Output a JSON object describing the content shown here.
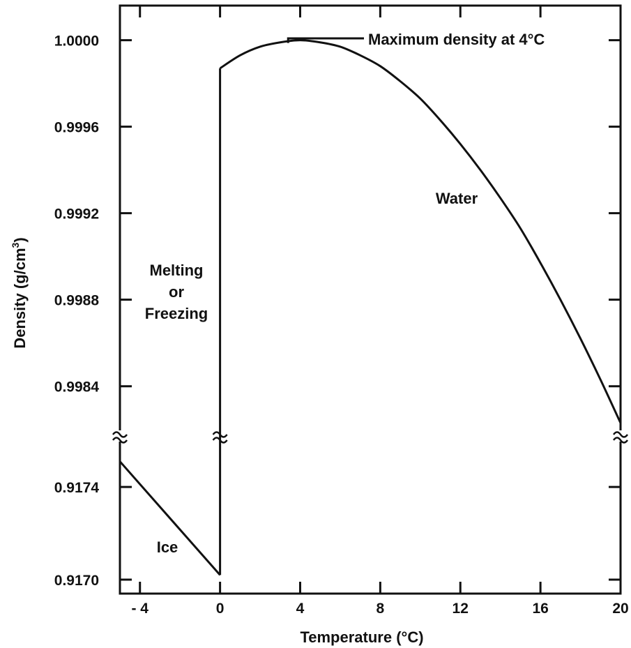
{
  "chart_data": {
    "type": "line",
    "title": "",
    "xlabel": "Temperature (°C)",
    "ylabel_main": "Density (g/cm",
    "ylabel_sup": "3",
    "ylabel_close": ")",
    "xlim": [
      -5,
      20
    ],
    "x_ticks": [
      -4,
      0,
      4,
      8,
      12,
      16,
      20
    ],
    "x_tick_labels": [
      "- 4",
      "0",
      "4",
      "8",
      "12",
      "16",
      "20"
    ],
    "y_axis_broken": true,
    "y_upper_range": [
      0.99817,
      1.00016
    ],
    "y_lower_range": [
      0.91694,
      0.91762
    ],
    "y_ticks_upper": [
      0.9984,
      0.9988,
      0.9992,
      0.9996,
      1.0
    ],
    "y_ticks_lower": [
      0.917,
      0.9174
    ],
    "y_tick_labels_upper": [
      "0.9984",
      "0.9988",
      "0.9992",
      "0.9996",
      "1.0000"
    ],
    "y_tick_labels_lower": [
      "0.9170",
      "0.9174"
    ],
    "grid": false,
    "series": [
      {
        "name": "Ice",
        "x": [
          -5,
          0
        ],
        "y": [
          0.91751,
          0.91702
        ]
      },
      {
        "name": "Melting or Freezing",
        "x": [
          0,
          0
        ],
        "y": [
          0.91702,
          0.99987
        ]
      },
      {
        "name": "Water",
        "x": [
          0,
          1,
          2,
          3,
          4,
          5,
          6,
          7,
          8,
          9,
          10,
          11,
          12,
          13,
          14,
          15,
          16,
          17,
          18,
          19,
          20
        ],
        "y": [
          0.99987,
          0.99993,
          0.99997,
          0.99999,
          1.0,
          0.99999,
          0.99997,
          0.99993,
          0.99988,
          0.99981,
          0.99973,
          0.99963,
          0.99952,
          0.9994,
          0.99927,
          0.99913,
          0.99897,
          0.9988,
          0.99862,
          0.99843,
          0.99823
        ]
      }
    ],
    "annotations": {
      "max_density": "Maximum density at 4°C",
      "water": "Water",
      "ice": "Ice",
      "melting_line1": "Melting",
      "melting_line2": "or",
      "melting_line3": "Freezing"
    }
  }
}
